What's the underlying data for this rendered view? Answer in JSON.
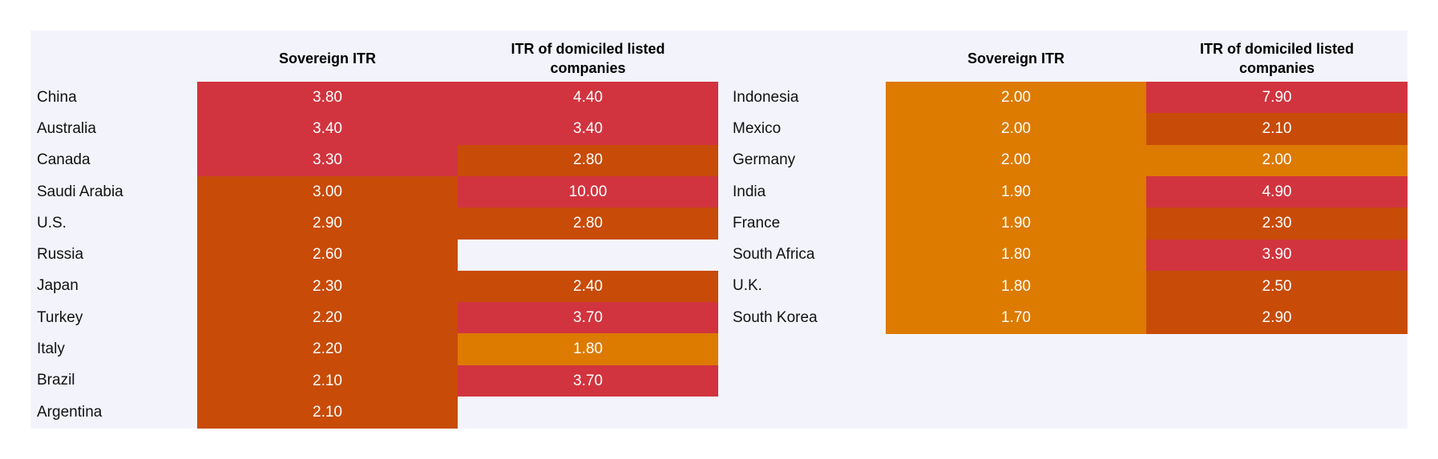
{
  "chart_data": [
    {
      "type": "heatmap",
      "columns": [
        "Sovereign ITR",
        "ITR of domiciled listed companies"
      ],
      "rows": [
        {
          "country": "China",
          "sovereign": "3.80",
          "companies": "4.40"
        },
        {
          "country": "Australia",
          "sovereign": "3.40",
          "companies": "3.40"
        },
        {
          "country": "Canada",
          "sovereign": "3.30",
          "companies": "2.80"
        },
        {
          "country": "Saudi Arabia",
          "sovereign": "3.00",
          "companies": "10.00"
        },
        {
          "country": "U.S.",
          "sovereign": "2.90",
          "companies": "2.80"
        },
        {
          "country": "Russia",
          "sovereign": "2.60",
          "companies": null
        },
        {
          "country": "Japan",
          "sovereign": "2.30",
          "companies": "2.40"
        },
        {
          "country": "Turkey",
          "sovereign": "2.20",
          "companies": "3.70"
        },
        {
          "country": "Italy",
          "sovereign": "2.20",
          "companies": "1.80"
        },
        {
          "country": "Brazil",
          "sovereign": "2.10",
          "companies": "3.70"
        },
        {
          "country": "Argentina",
          "sovereign": "2.10",
          "companies": null
        }
      ]
    },
    {
      "type": "heatmap",
      "columns": [
        "Sovereign ITR",
        "ITR of domiciled listed companies"
      ],
      "rows": [
        {
          "country": "Indonesia",
          "sovereign": "2.00",
          "companies": "7.90"
        },
        {
          "country": "Mexico",
          "sovereign": "2.00",
          "companies": "2.10"
        },
        {
          "country": "Germany",
          "sovereign": "2.00",
          "companies": "2.00"
        },
        {
          "country": "India",
          "sovereign": "1.90",
          "companies": "4.90"
        },
        {
          "country": "France",
          "sovereign": "1.90",
          "companies": "2.30"
        },
        {
          "country": "South Africa",
          "sovereign": "1.80",
          "companies": "3.90"
        },
        {
          "country": "U.K.",
          "sovereign": "1.80",
          "companies": "2.50"
        },
        {
          "country": "South Korea",
          "sovereign": "1.70",
          "companies": "2.90"
        }
      ]
    }
  ],
  "colors": {
    "above_3": "#d1343f",
    "between_2_and_3": "#c84b08",
    "up_to_2": "#dd7a00",
    "panel_background": "#f3f4fb"
  }
}
